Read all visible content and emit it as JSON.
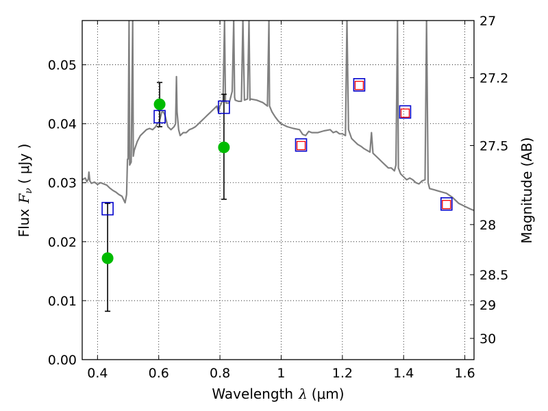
{
  "chart_data": {
    "type": "scatter",
    "xlabel_prefix": "Wavelength",
    "xlabel_symbol": "λ",
    "xlabel_unit": "(μm)",
    "ylabel_prefix": "Flux",
    "ylabel_symbol": "F",
    "ylabel_subscript": "ν",
    "ylabel_unit": "( μJy )",
    "y2label": "Magnitude (AB)",
    "xlim": [
      0.35,
      1.63
    ],
    "ylim": [
      0.0,
      0.0575
    ],
    "grid": true,
    "x_ticks": [
      0.4,
      0.6,
      0.8,
      1.0,
      1.2,
      1.4,
      1.6
    ],
    "x_tick_labels": [
      "0.4",
      "0.6",
      "0.8",
      "1",
      "1.2",
      "1.4",
      "1.6"
    ],
    "y_ticks": [
      0.0,
      0.01,
      0.02,
      0.03,
      0.04,
      0.05
    ],
    "y_tick_labels": [
      "0.00",
      "0.01",
      "0.02",
      "0.03",
      "0.04",
      "0.05"
    ],
    "y2_ticks": [
      {
        "label": "27",
        "flux": 0.0575
      },
      {
        "label": "27.2",
        "flux": 0.0478
      },
      {
        "label": "27.5",
        "flux": 0.0363
      },
      {
        "label": "28",
        "flux": 0.0229
      },
      {
        "label": "28.5",
        "flux": 0.0144
      },
      {
        "label": "29",
        "flux": 0.0093
      },
      {
        "label": "30",
        "flux": 0.0036
      }
    ],
    "series": [
      {
        "kind": "model_spectrum",
        "color": "#808080",
        "points": [
          [
            0.35,
            0.0305
          ],
          [
            0.36,
            0.0308
          ],
          [
            0.365,
            0.0302
          ],
          [
            0.37,
            0.0306
          ],
          [
            0.372,
            0.0318
          ],
          [
            0.375,
            0.0303
          ],
          [
            0.38,
            0.0299
          ],
          [
            0.39,
            0.0301
          ],
          [
            0.4,
            0.0297
          ],
          [
            0.41,
            0.03
          ],
          [
            0.42,
            0.0298
          ],
          [
            0.43,
            0.0296
          ],
          [
            0.44,
            0.0291
          ],
          [
            0.45,
            0.0287
          ],
          [
            0.46,
            0.0284
          ],
          [
            0.47,
            0.028
          ],
          [
            0.48,
            0.0277
          ],
          [
            0.49,
            0.0266
          ],
          [
            0.495,
            0.028
          ],
          [
            0.498,
            0.034
          ],
          [
            0.5,
            0.034
          ],
          [
            0.503,
            0.0575
          ],
          [
            0.505,
            0.033
          ],
          [
            0.51,
            0.0335
          ],
          [
            0.515,
            0.0575
          ],
          [
            0.517,
            0.0345
          ],
          [
            0.52,
            0.0355
          ],
          [
            0.53,
            0.037
          ],
          [
            0.54,
            0.038
          ],
          [
            0.55,
            0.0385
          ],
          [
            0.56,
            0.039
          ],
          [
            0.57,
            0.0392
          ],
          [
            0.58,
            0.039
          ],
          [
            0.59,
            0.0395
          ],
          [
            0.595,
            0.04
          ],
          [
            0.6,
            0.0402
          ],
          [
            0.605,
            0.041
          ],
          [
            0.61,
            0.042
          ],
          [
            0.615,
            0.042
          ],
          [
            0.62,
            0.0415
          ],
          [
            0.625,
            0.0405
          ],
          [
            0.63,
            0.0395
          ],
          [
            0.64,
            0.039
          ],
          [
            0.65,
            0.0395
          ],
          [
            0.655,
            0.04
          ],
          [
            0.658,
            0.048
          ],
          [
            0.66,
            0.042
          ],
          [
            0.665,
            0.039
          ],
          [
            0.67,
            0.038
          ],
          [
            0.68,
            0.0385
          ],
          [
            0.69,
            0.0385
          ],
          [
            0.7,
            0.039
          ],
          [
            0.71,
            0.0392
          ],
          [
            0.72,
            0.0395
          ],
          [
            0.73,
            0.04
          ],
          [
            0.74,
            0.0405
          ],
          [
            0.75,
            0.041
          ],
          [
            0.76,
            0.0415
          ],
          [
            0.77,
            0.042
          ],
          [
            0.78,
            0.0425
          ],
          [
            0.79,
            0.043
          ],
          [
            0.795,
            0.042
          ],
          [
            0.8,
            0.043
          ],
          [
            0.81,
            0.044
          ],
          [
            0.815,
            0.0575
          ],
          [
            0.818,
            0.044
          ],
          [
            0.82,
            0.0435
          ],
          [
            0.83,
            0.0435
          ],
          [
            0.84,
            0.0455
          ],
          [
            0.845,
            0.0575
          ],
          [
            0.848,
            0.0445
          ],
          [
            0.85,
            0.044
          ],
          [
            0.86,
            0.0438
          ],
          [
            0.87,
            0.0438
          ],
          [
            0.875,
            0.0575
          ],
          [
            0.88,
            0.044
          ],
          [
            0.89,
            0.0442
          ],
          [
            0.895,
            0.0575
          ],
          [
            0.898,
            0.044
          ],
          [
            0.9,
            0.0442
          ],
          [
            0.92,
            0.044
          ],
          [
            0.94,
            0.0436
          ],
          [
            0.955,
            0.043
          ],
          [
            0.96,
            0.0575
          ],
          [
            0.962,
            0.043
          ],
          [
            0.97,
            0.042
          ],
          [
            0.98,
            0.0412
          ],
          [
            0.99,
            0.0405
          ],
          [
            1.0,
            0.04
          ],
          [
            1.02,
            0.0395
          ],
          [
            1.04,
            0.0392
          ],
          [
            1.06,
            0.039
          ],
          [
            1.07,
            0.0382
          ],
          [
            1.08,
            0.038
          ],
          [
            1.09,
            0.0387
          ],
          [
            1.1,
            0.0385
          ],
          [
            1.12,
            0.0385
          ],
          [
            1.14,
            0.0388
          ],
          [
            1.16,
            0.039
          ],
          [
            1.17,
            0.0385
          ],
          [
            1.18,
            0.0387
          ],
          [
            1.19,
            0.0383
          ],
          [
            1.2,
            0.0383
          ],
          [
            1.21,
            0.038
          ],
          [
            1.215,
            0.0575
          ],
          [
            1.22,
            0.039
          ],
          [
            1.23,
            0.0375
          ],
          [
            1.24,
            0.037
          ],
          [
            1.25,
            0.0365
          ],
          [
            1.26,
            0.0362
          ],
          [
            1.27,
            0.0358
          ],
          [
            1.28,
            0.0355
          ],
          [
            1.29,
            0.0352
          ],
          [
            1.295,
            0.0385
          ],
          [
            1.3,
            0.035
          ],
          [
            1.31,
            0.0345
          ],
          [
            1.32,
            0.034
          ],
          [
            1.33,
            0.0335
          ],
          [
            1.34,
            0.033
          ],
          [
            1.35,
            0.0325
          ],
          [
            1.36,
            0.0325
          ],
          [
            1.37,
            0.032
          ],
          [
            1.375,
            0.033
          ],
          [
            1.38,
            0.0575
          ],
          [
            1.383,
            0.0325
          ],
          [
            1.39,
            0.0315
          ],
          [
            1.4,
            0.031
          ],
          [
            1.41,
            0.0305
          ],
          [
            1.42,
            0.0308
          ],
          [
            1.43,
            0.0305
          ],
          [
            1.44,
            0.03
          ],
          [
            1.45,
            0.0298
          ],
          [
            1.46,
            0.0303
          ],
          [
            1.47,
            0.0305
          ],
          [
            1.475,
            0.0575
          ],
          [
            1.48,
            0.03
          ],
          [
            1.485,
            0.029
          ],
          [
            1.5,
            0.0288
          ],
          [
            1.52,
            0.0285
          ],
          [
            1.54,
            0.0282
          ],
          [
            1.56,
            0.0275
          ],
          [
            1.58,
            0.0265
          ],
          [
            1.6,
            0.026
          ],
          [
            1.62,
            0.0255
          ],
          [
            1.63,
            0.0253
          ]
        ]
      },
      {
        "kind": "model_photometry",
        "marker": "open-square",
        "color": "#0000cc",
        "points": [
          [
            0.433,
            0.0256
          ],
          [
            0.603,
            0.0412
          ],
          [
            0.813,
            0.0428
          ],
          [
            1.065,
            0.0364
          ],
          [
            1.255,
            0.0466
          ],
          [
            1.405,
            0.042
          ],
          [
            1.54,
            0.0264
          ]
        ]
      },
      {
        "kind": "observed_upper_limits",
        "marker": "small-open-square",
        "color": "#ff0000",
        "points": [
          [
            1.065,
            0.0363
          ],
          [
            1.255,
            0.0465
          ],
          [
            1.405,
            0.0418
          ],
          [
            1.54,
            0.0263
          ]
        ]
      },
      {
        "kind": "observed_photometry",
        "marker": "filled-circle",
        "color": "#00bb00",
        "points": [
          {
            "x": 0.433,
            "y": 0.0172,
            "err_low": 0.0082,
            "err_high": 0.0265
          },
          {
            "x": 0.603,
            "y": 0.0433,
            "err_low": 0.0395,
            "err_high": 0.047
          },
          {
            "x": 0.813,
            "y": 0.036,
            "err_low": 0.0272,
            "err_high": 0.045
          }
        ]
      }
    ]
  }
}
